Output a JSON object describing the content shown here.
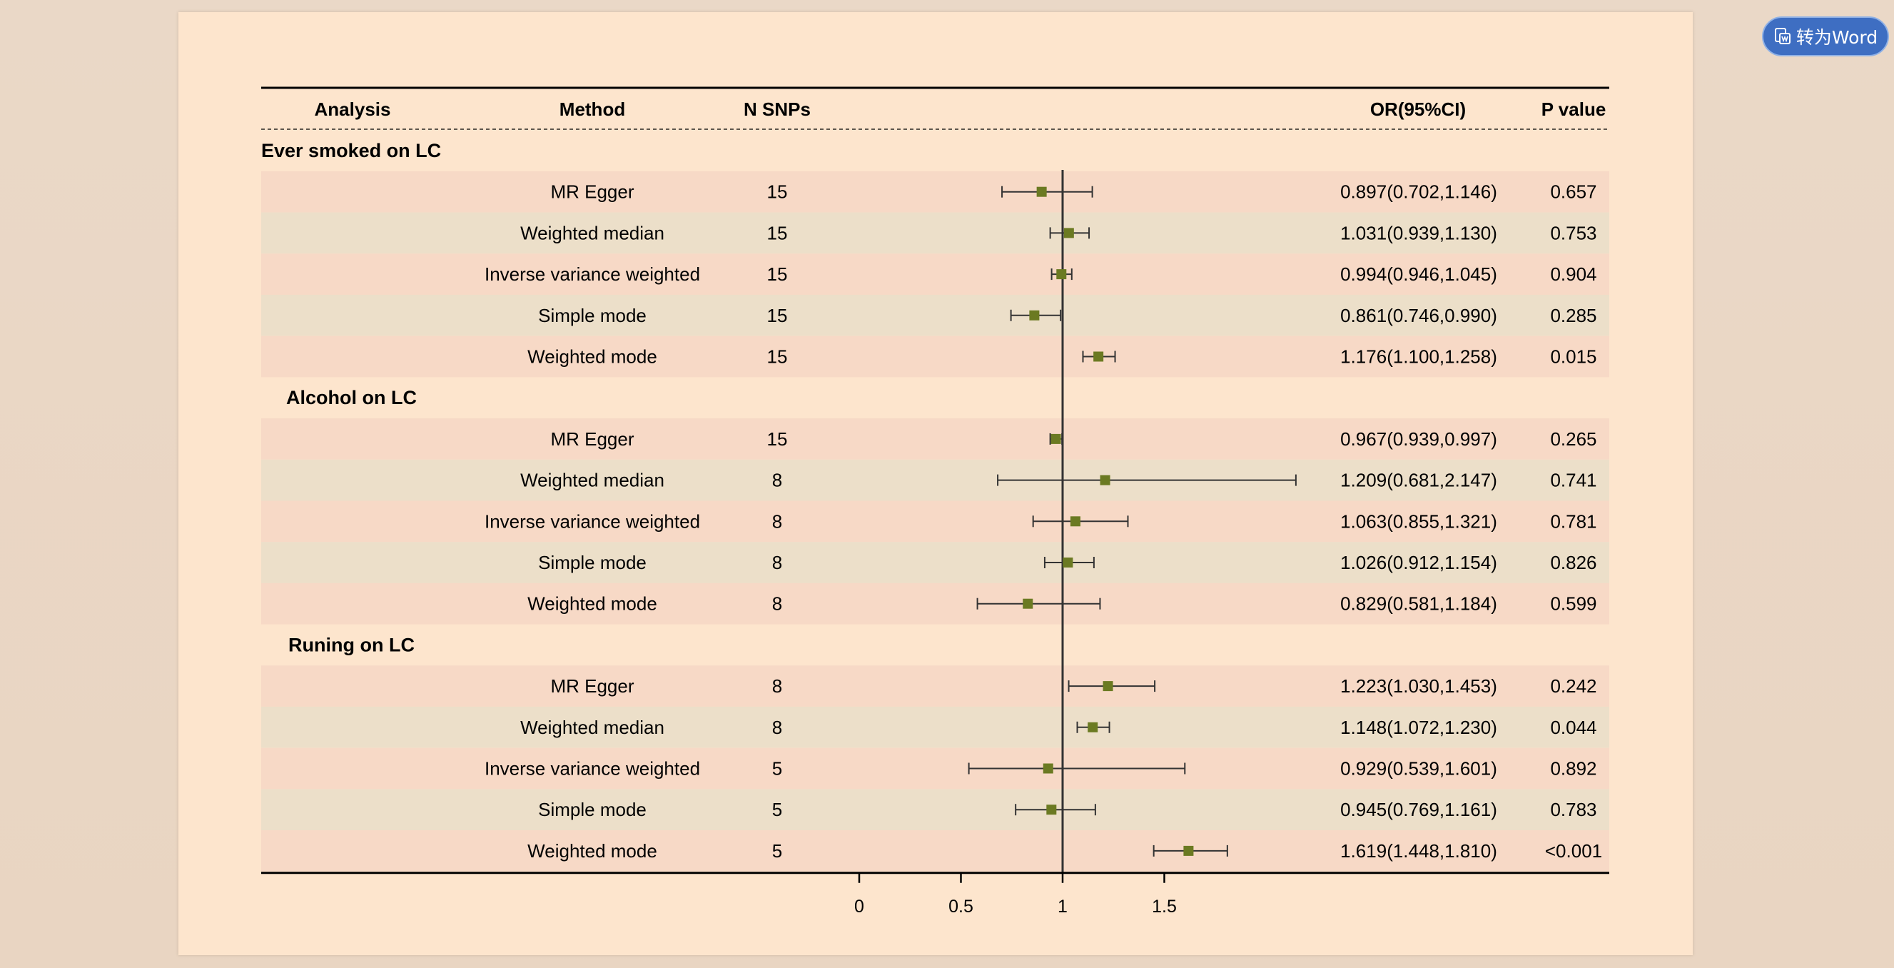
{
  "toolbar": {
    "word_button_label": "转为Word",
    "word_button_icon": "document-convert-icon"
  },
  "colors": {
    "page_bg": "#fde5cd",
    "row_pink": "#f7d9c6",
    "row_beige": "#ecdfc9",
    "marker": "#6b7a22",
    "button_bg": "#3e6ec2"
  },
  "chart_data": {
    "type": "forest",
    "headers": {
      "analysis": "Analysis",
      "method": "Method",
      "nsnps": "N SNPs",
      "or_ci": "OR(95%CI)",
      "pvalue": "P value"
    },
    "reference_line": 1,
    "xlim": [
      0,
      1.5
    ],
    "xticks": [
      "0",
      "0.5",
      "1",
      "1.5"
    ],
    "groups": [
      {
        "label": "Ever smoked on LC",
        "rows": [
          {
            "method": "MR Egger",
            "n": "15",
            "or": 0.897,
            "lo": 0.702,
            "hi": 1.146,
            "ci_text": "0.897(0.702,1.146)",
            "p": "0.657"
          },
          {
            "method": "Weighted median",
            "n": "15",
            "or": 1.031,
            "lo": 0.939,
            "hi": 1.13,
            "ci_text": "1.031(0.939,1.130)",
            "p": "0.753"
          },
          {
            "method": "Inverse variance weighted",
            "n": "15",
            "or": 0.994,
            "lo": 0.946,
            "hi": 1.045,
            "ci_text": "0.994(0.946,1.045)",
            "p": "0.904"
          },
          {
            "method": "Simple mode",
            "n": "15",
            "or": 0.861,
            "lo": 0.746,
            "hi": 0.99,
            "ci_text": "0.861(0.746,0.990)",
            "p": "0.285"
          },
          {
            "method": "Weighted mode",
            "n": "15",
            "or": 1.176,
            "lo": 1.1,
            "hi": 1.258,
            "ci_text": "1.176(1.100,1.258)",
            "p": "0.015"
          }
        ]
      },
      {
        "label": "Alcohol on LC",
        "rows": [
          {
            "method": "MR Egger",
            "n": "15",
            "or": 0.967,
            "lo": 0.939,
            "hi": 0.997,
            "ci_text": "0.967(0.939,0.997)",
            "p": "0.265"
          },
          {
            "method": "Weighted median",
            "n": "8",
            "or": 1.209,
            "lo": 0.681,
            "hi": 2.147,
            "ci_text": "1.209(0.681,2.147)",
            "p": "0.741"
          },
          {
            "method": "Inverse variance weighted",
            "n": "8",
            "or": 1.063,
            "lo": 0.855,
            "hi": 1.321,
            "ci_text": "1.063(0.855,1.321)",
            "p": "0.781"
          },
          {
            "method": "Simple mode",
            "n": "8",
            "or": 1.026,
            "lo": 0.912,
            "hi": 1.154,
            "ci_text": "1.026(0.912,1.154)",
            "p": "0.826"
          },
          {
            "method": "Weighted mode",
            "n": "8",
            "or": 0.829,
            "lo": 0.581,
            "hi": 1.184,
            "ci_text": "0.829(0.581,1.184)",
            "p": "0.599"
          }
        ]
      },
      {
        "label": "Runing on LC",
        "rows": [
          {
            "method": "MR Egger",
            "n": "8",
            "or": 1.223,
            "lo": 1.03,
            "hi": 1.453,
            "ci_text": "1.223(1.030,1.453)",
            "p": "0.242"
          },
          {
            "method": "Weighted median",
            "n": "8",
            "or": 1.148,
            "lo": 1.072,
            "hi": 1.23,
            "ci_text": "1.148(1.072,1.230)",
            "p": "0.044"
          },
          {
            "method": "Inverse variance weighted",
            "n": "5",
            "or": 0.929,
            "lo": 0.539,
            "hi": 1.601,
            "ci_text": "0.929(0.539,1.601)",
            "p": "0.892"
          },
          {
            "method": "Simple mode",
            "n": "5",
            "or": 0.945,
            "lo": 0.769,
            "hi": 1.161,
            "ci_text": "0.945(0.769,1.161)",
            "p": "0.783"
          },
          {
            "method": "Weighted mode",
            "n": "5",
            "or": 1.619,
            "lo": 1.448,
            "hi": 1.81,
            "ci_text": "1.619(1.448,1.810)",
            "p": "<0.001"
          }
        ]
      }
    ]
  }
}
